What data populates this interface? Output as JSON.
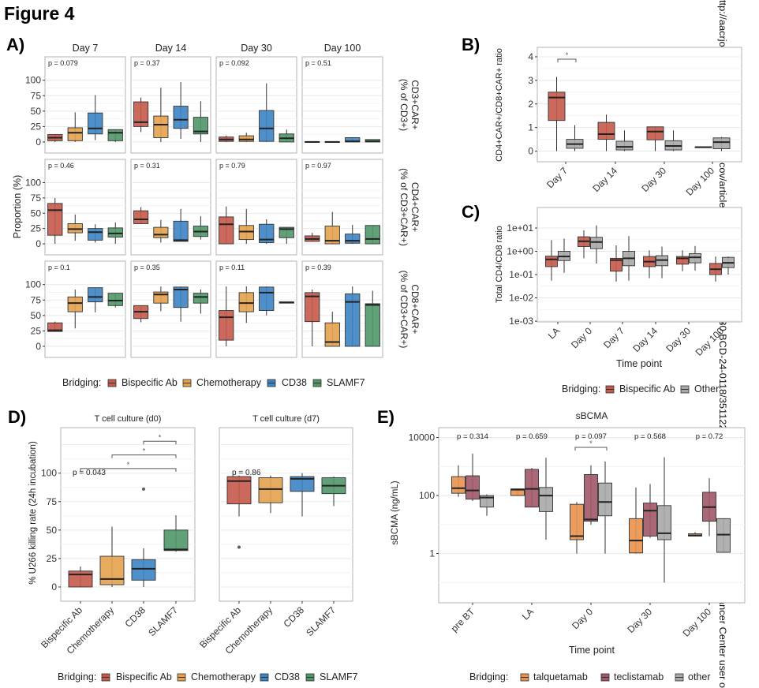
{
  "figure_title": "Figure 4",
  "watermark": "ttp://aacrjournals.org/bloodcancerdiscov/article-pdf/doi/10.1158/2643-3230.BCD-24-0118/3511229/bcd-24-0118.pdf by MD Anderson Cancer Center user o",
  "box_fields": [
    "whisker_low",
    "q1",
    "median",
    "q3",
    "whisker_high"
  ],
  "colors": {
    "Bispecific Ab": "#c5594b",
    "Chemotherapy": "#e4a24f",
    "CD38": "#3d84c4",
    "SLAMF7": "#4f9768",
    "Other": "#a8a8a8",
    "talquetamab": "#e8924e",
    "teclistamab": "#a15868",
    "other": "#a8a8a8"
  },
  "chart_data": [
    {
      "panel_label": "A)",
      "type": "box",
      "facet_cols": [
        "Day 7",
        "Day 14",
        "Day 30",
        "Day 100"
      ],
      "facet_rows": [
        [
          "CD3+CAR+",
          "(% of CD3+)"
        ],
        [
          "CD4+CAR+",
          "(% of CD3+CAR+)"
        ],
        [
          "CD8+CAR+",
          "(% of CD3+CAR+)"
        ]
      ],
      "ylabel": "Proportion (%)",
      "ylim": [
        -18,
        138
      ],
      "yticks": [
        0,
        25,
        50,
        75,
        100
      ],
      "groups": [
        "Bispecific Ab",
        "Chemotherapy",
        "CD38",
        "SLAMF7"
      ],
      "pvalues": [
        [
          "p = 0.079",
          "p = 0.37",
          "p = 0.092",
          "p = 0.51"
        ],
        [
          "p = 0.46",
          "p = 0.31",
          "p = 0.79",
          "p = 0.97"
        ],
        [
          "p = 0.1",
          "p = 0.35",
          "p = 0.11",
          "p = 0.39"
        ]
      ],
      "boxes": [
        [
          [
            [
              0,
              2,
              7,
              12,
              12
            ],
            [
              0,
              2,
              15,
              23,
              48
            ],
            [
              3,
              13,
              22,
              47,
              76
            ],
            [
              0,
              2,
              15,
              20,
              20
            ]
          ],
          [
            [
              16,
              25,
              32,
              65,
              72
            ],
            [
              0,
              7,
              28,
              42,
              88
            ],
            [
              5,
              22,
              36,
              58,
              97
            ],
            [
              0,
              13,
              17,
              40,
              66
            ]
          ],
          [
            [
              0,
              1,
              4,
              8,
              10
            ],
            [
              0,
              1,
              4,
              10,
              15
            ],
            [
              0,
              1,
              22,
              51,
              95
            ],
            [
              0,
              0,
              6,
              13,
              20
            ]
          ],
          [
            [
              0,
              0,
              0,
              0.5,
              0.5
            ],
            [
              0,
              0,
              0,
              0.5,
              1
            ],
            [
              0,
              0,
              1,
              7,
              7
            ],
            [
              0,
              0,
              1,
              4,
              4
            ]
          ]
        ],
        [
          [
            [
              0,
              14,
              55,
              66,
              75
            ],
            [
              5,
              18,
              24,
              33,
              48
            ],
            [
              2,
              6,
              19,
              25,
              32
            ],
            [
              0,
              11,
              17,
              26,
              35
            ]
          ],
          [
            [
              33,
              33,
              40,
              54,
              60
            ],
            [
              2,
              10,
              15,
              27,
              39
            ],
            [
              4,
              4,
              6,
              37,
              57
            ],
            [
              7,
              12,
              20,
              29,
              45
            ]
          ],
          [
            [
              0,
              0,
              32,
              44,
              61
            ],
            [
              0,
              7,
              20,
              30,
              57
            ],
            [
              0,
              2,
              7,
              32,
              40
            ],
            [
              0,
              10,
              24,
              27,
              27
            ]
          ],
          [
            [
              4,
              4,
              8,
              13,
              18
            ],
            [
              0,
              0,
              5,
              29,
              52
            ],
            [
              0,
              1,
              5,
              16,
              31
            ],
            [
              0,
              0,
              8,
              30,
              30
            ]
          ]
        ],
        [
          [
            [
              24,
              24,
              26,
              38,
              40
            ],
            [
              29,
              56,
              70,
              80,
              92
            ],
            [
              55,
              72,
              80,
              95,
              95
            ],
            [
              63,
              66,
              74,
              86,
              86
            ]
          ],
          [
            [
              39,
              45,
              56,
              66,
              66
            ],
            [
              57,
              70,
              84,
              88,
              97
            ],
            [
              40,
              63,
              92,
              96,
              97
            ],
            [
              53,
              70,
              80,
              86,
              92
            ]
          ],
          [
            [
              0,
              10,
              47,
              58,
              97
            ],
            [
              38,
              56,
              70,
              87,
              97
            ],
            [
              50,
              58,
              87,
              96,
              97
            ],
            [
              70,
              70,
              71,
              72,
              72
            ]
          ],
          [
            [
              0,
              40,
              81,
              87,
              92
            ],
            [
              0,
              0,
              7,
              38,
              56
            ],
            [
              0,
              0,
              72,
              85,
              97
            ],
            [
              0,
              0,
              67,
              69,
              90
            ]
          ]
        ]
      ],
      "legend": {
        "title": "Bridging:",
        "entries": [
          "Bispecific Ab",
          "Chemotherapy",
          "CD38",
          "SLAMF7"
        ]
      }
    },
    {
      "panel_label": "B)",
      "type": "box",
      "ylabel": "CD4+CAR+/CD8+CAR+ ratio",
      "ylim": [
        -0.45,
        4.4
      ],
      "yticks": [
        0,
        1,
        2,
        3,
        4
      ],
      "categories": [
        "Day 7",
        "Day 14",
        "Day 30",
        "Day 100"
      ],
      "groups": [
        "Bispecific Ab",
        "Other"
      ],
      "boxes": [
        [
          [
            0,
            1.3,
            2.27,
            2.5,
            3.15
          ],
          [
            0,
            0.12,
            0.3,
            0.5,
            1.1
          ]
        ],
        [
          [
            0,
            0.5,
            0.72,
            1.22,
            1.55
          ],
          [
            0,
            0.05,
            0.18,
            0.42,
            0.88
          ]
        ],
        [
          [
            0,
            0.48,
            0.83,
            1.03,
            1.03
          ],
          [
            0,
            0.05,
            0.22,
            0.44,
            0.88
          ]
        ],
        [
          [
            0.14,
            0.15,
            0.17,
            0.18,
            0.2
          ],
          [
            0,
            0.1,
            0.38,
            0.56,
            0.6
          ]
        ]
      ],
      "significance": [
        {
          "category": "Day 7",
          "y": 3.9,
          "label": "*"
        }
      ]
    },
    {
      "panel_label": "C)",
      "type": "box",
      "yscale": "log",
      "ylabel": "Total CD4/CD8 ratio",
      "xlabel": "Time point",
      "ylim": [
        0.00093,
        76
      ],
      "yticks": [
        0.001,
        0.01,
        0.1,
        1,
        10
      ],
      "yticklabels": [
        "1e-03",
        "1e-02",
        "1e-01",
        "1e+00",
        "1e+01"
      ],
      "categories": [
        "LA",
        "Day 0",
        "Day 7",
        "Day 14",
        "Day 30",
        "Day 100"
      ],
      "groups": [
        "Bispecific Ab",
        "Other"
      ],
      "boxes": [
        [
          [
            0.055,
            0.22,
            0.45,
            0.62,
            3
          ],
          [
            0.12,
            0.4,
            0.6,
            1.0,
            3.5
          ]
        ],
        [
          [
            0.5,
            1.6,
            2.7,
            4.2,
            8
          ],
          [
            0.3,
            1.3,
            2.5,
            4,
            13
          ]
        ],
        [
          [
            0.05,
            0.14,
            0.42,
            0.5,
            1.8
          ],
          [
            0.055,
            0.24,
            0.5,
            1.0,
            4.5
          ]
        ],
        [
          [
            0.07,
            0.22,
            0.36,
            0.6,
            1.1
          ],
          [
            0.07,
            0.24,
            0.42,
            0.65,
            1.6
          ]
        ],
        [
          [
            0.14,
            0.28,
            0.5,
            0.6,
            1.1
          ],
          [
            0.15,
            0.32,
            0.55,
            0.8,
            1.7
          ]
        ],
        [
          [
            0.05,
            0.1,
            0.17,
            0.3,
            0.6
          ],
          [
            0.1,
            0.2,
            0.32,
            0.55,
            0.6
          ]
        ]
      ],
      "legend": {
        "title": "Bridging:",
        "entries": [
          "Bispecific Ab",
          "Other"
        ]
      }
    },
    {
      "panel_label": "D)",
      "type": "box",
      "title": "T cell culture (d0)",
      "ylabel": "% U266 killing rate (24h incubation)",
      "ylim": [
        -12.5,
        140
      ],
      "yticks": [
        0,
        25,
        50,
        75,
        100
      ],
      "categories": [
        "Bispecific Ab",
        "Chemotherapy",
        "CD38",
        "SLAMF7"
      ],
      "pvalue": "p = 0.043",
      "boxes": [
        [
          0,
          0,
          11,
          14,
          18
        ],
        [
          0,
          2,
          7,
          27,
          53
        ],
        [
          0,
          6,
          16,
          24,
          34
        ],
        [
          31,
          32,
          33,
          50,
          63
        ]
      ],
      "outliers": [
        [],
        [],
        [
          86
        ],
        []
      ],
      "significance": [
        {
          "from": "Bispecific Ab",
          "to": "SLAMF7",
          "y": 104,
          "label": "*"
        },
        {
          "from": "Chemotherapy",
          "to": "SLAMF7",
          "y": 116,
          "label": "*"
        },
        {
          "from": "CD38",
          "to": "SLAMF7",
          "y": 128,
          "label": "*"
        }
      ],
      "legend": {
        "title": "Bridging:",
        "entries": [
          "Bispecific Ab",
          "Chemotherapy",
          "CD38",
          "SLAMF7"
        ]
      }
    },
    {
      "type": "box",
      "title": "T cell culture (d7)",
      "ylim": [
        -12.5,
        140
      ],
      "categories": [
        "Bispecific Ab",
        "Chemotherapy",
        "CD38",
        "SLAMF7"
      ],
      "pvalue": "p = 0.86",
      "boxes": [
        [
          62,
          73,
          93,
          97,
          98
        ],
        [
          65,
          74,
          86,
          96,
          98
        ],
        [
          62,
          84,
          95,
          97,
          100
        ],
        [
          71,
          82,
          89,
          96,
          97
        ]
      ],
      "outliers": [
        [
          35
        ],
        [],
        [],
        []
      ]
    },
    {
      "panel_label": "E)",
      "type": "box",
      "yscale": "log",
      "title": "sBCMA",
      "ylabel": "sBCMA (ng/mL)",
      "xlabel": "Time point",
      "ylim": [
        0.02,
        22000
      ],
      "yticks": [
        1,
        100,
        10000
      ],
      "yticklabels": [
        "1",
        "100",
        "10000"
      ],
      "categories": [
        "pre BT",
        "LA",
        "Day 0",
        "Day 30",
        "Day 100"
      ],
      "groups": [
        "talquetamab",
        "teclistamab",
        "other"
      ],
      "pvalues": [
        "p = 0.314",
        "p = 0.659",
        "p = 0.097",
        "p = 0.568",
        "p = 0.72"
      ],
      "boxes": [
        [
          [
            90,
            120,
            180,
            450,
            1100
          ],
          [
            65,
            75,
            150,
            480,
            2800
          ],
          [
            20,
            40,
            85,
            100,
            110
          ]
        ],
        [
          [
            100,
            100,
            160,
            170,
            170
          ],
          [
            40,
            40,
            170,
            800,
            900
          ],
          [
            3,
            28,
            100,
            190,
            2000
          ]
        ],
        [
          [
            1,
            3,
            4,
            50,
            60
          ],
          [
            10,
            13,
            15,
            530,
            1100
          ],
          [
            1,
            20,
            60,
            270,
            1500
          ]
        ],
        [
          [
            1,
            1.05,
            2.8,
            16,
            190
          ],
          [
            3.5,
            4,
            30,
            55,
            250
          ],
          [
            0.1,
            3,
            5,
            45,
            2100
          ]
        ],
        [
          [
            4,
            4,
            4.2,
            4.8,
            5.5
          ],
          [
            4,
            13,
            40,
            130,
            400
          ],
          [
            1.1,
            1.1,
            4.5,
            16,
            16
          ]
        ]
      ],
      "significance": [
        {
          "category": "Day 0",
          "from": "talquetamab",
          "to": "other",
          "y": 5000,
          "label": "*"
        }
      ],
      "legend": {
        "title": "Bridging:",
        "entries": [
          "talquetamab",
          "teclistamab",
          "other"
        ]
      }
    }
  ]
}
